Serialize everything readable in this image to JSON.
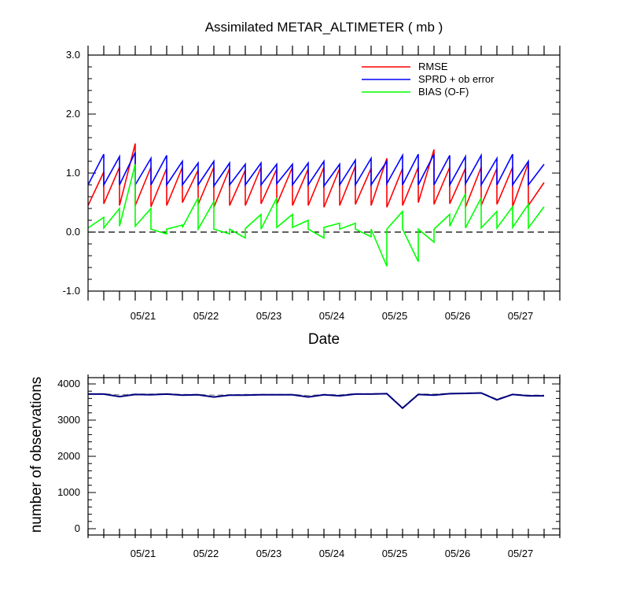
{
  "chart_data": [
    {
      "type": "line",
      "title": "Assimilated METAR_ALTIMETER ( mb )",
      "xlabel": "Date",
      "ylabel": "",
      "ylim": [
        -1.0,
        3.0
      ],
      "yticks": [
        -1.0,
        0.0,
        1.0,
        2.0,
        3.0
      ],
      "ytick_labels": [
        "-1.0",
        "0.0",
        "1.0",
        "2.0",
        "3.0"
      ],
      "xlim": [
        0,
        30
      ],
      "xticks": [
        {
          "x": 3.5,
          "label": "05/21"
        },
        {
          "x": 7.5,
          "label": "05/22"
        },
        {
          "x": 11.5,
          "label": "05/23"
        },
        {
          "x": 15.5,
          "label": "05/24"
        },
        {
          "x": 19.5,
          "label": "05/25"
        },
        {
          "x": 23.5,
          "label": "05/26"
        },
        {
          "x": 27.5,
          "label": "05/27"
        }
      ],
      "reference_line": {
        "y": 0.0,
        "style": "dashed"
      },
      "legend_position": "top-right",
      "series": [
        {
          "name": "RMSE",
          "color": "#ff0000",
          "values": [
            [
              0.45,
              1.02
            ],
            [
              0.48,
              1.1
            ],
            [
              0.45,
              1.5
            ],
            [
              0.45,
              1.1
            ],
            [
              0.43,
              1.08
            ],
            [
              0.45,
              1.1
            ],
            [
              0.5,
              1.05
            ],
            [
              0.47,
              1.1
            ],
            [
              0.42,
              1.08
            ],
            [
              0.45,
              1.05
            ],
            [
              0.45,
              1.1
            ],
            [
              0.48,
              1.07
            ],
            [
              0.47,
              1.1
            ],
            [
              0.45,
              1.07
            ],
            [
              0.45,
              1.1
            ],
            [
              0.42,
              1.08
            ],
            [
              0.45,
              1.12
            ],
            [
              0.47,
              1.08
            ],
            [
              0.45,
              1.25
            ],
            [
              0.42,
              1.08
            ],
            [
              0.45,
              1.1
            ],
            [
              0.5,
              1.4
            ],
            [
              0.47,
              1.1
            ],
            [
              0.48,
              1.08
            ],
            [
              0.42,
              1.1
            ],
            [
              0.45,
              1.08
            ],
            [
              0.47,
              1.1
            ],
            [
              0.43,
              1.17
            ],
            [
              0.45,
              0.84
            ]
          ]
        },
        {
          "name": "SPRD + ob error",
          "color": "#0000ff",
          "values": [
            [
              0.8,
              1.32
            ],
            [
              0.8,
              1.28
            ],
            [
              0.8,
              1.35
            ],
            [
              0.8,
              1.25
            ],
            [
              0.8,
              1.3
            ],
            [
              0.8,
              1.2
            ],
            [
              0.8,
              1.17
            ],
            [
              0.8,
              1.2
            ],
            [
              0.78,
              1.17
            ],
            [
              0.8,
              1.15
            ],
            [
              0.8,
              1.17
            ],
            [
              0.8,
              1.15
            ],
            [
              0.82,
              1.15
            ],
            [
              0.8,
              1.17
            ],
            [
              0.8,
              1.2
            ],
            [
              0.78,
              1.15
            ],
            [
              0.8,
              1.22
            ],
            [
              0.8,
              1.25
            ],
            [
              0.8,
              1.2
            ],
            [
              0.82,
              1.3
            ],
            [
              0.8,
              1.32
            ],
            [
              0.8,
              1.32
            ],
            [
              0.8,
              1.3
            ],
            [
              0.8,
              1.28
            ],
            [
              0.82,
              1.3
            ],
            [
              0.8,
              1.25
            ],
            [
              0.8,
              1.32
            ],
            [
              0.8,
              1.2
            ],
            [
              0.8,
              1.15
            ]
          ]
        },
        {
          "name": "BIAS (O-F)",
          "color": "#00ff00",
          "values": [
            [
              0.07,
              0.25
            ],
            [
              0.07,
              0.4
            ],
            [
              0.1,
              1.15
            ],
            [
              0.1,
              0.4
            ],
            [
              0.05,
              -0.03
            ],
            [
              0.05,
              0.12
            ],
            [
              0.08,
              0.58
            ],
            [
              0.05,
              0.52
            ],
            [
              0.05,
              -0.03
            ],
            [
              0.05,
              -0.1
            ],
            [
              0.06,
              0.3
            ],
            [
              0.05,
              0.58
            ],
            [
              0.08,
              0.3
            ],
            [
              0.08,
              0.2
            ],
            [
              0.05,
              -0.1
            ],
            [
              0.08,
              0.15
            ],
            [
              0.05,
              0.15
            ],
            [
              0.05,
              -0.08
            ],
            [
              0.05,
              -0.58
            ],
            [
              0.05,
              0.35
            ],
            [
              0.05,
              -0.5
            ],
            [
              0.05,
              -0.17
            ],
            [
              0.05,
              0.3
            ],
            [
              0.1,
              0.65
            ],
            [
              0.07,
              0.58
            ],
            [
              0.07,
              0.35
            ],
            [
              0.07,
              0.43
            ],
            [
              0.08,
              0.47
            ],
            [
              0.07,
              0.43
            ]
          ]
        }
      ]
    },
    {
      "type": "line",
      "title": "",
      "xlabel": "",
      "ylabel": "number of observations",
      "ylim": [
        0,
        4000
      ],
      "yticks": [
        0,
        1000,
        2000,
        3000,
        4000
      ],
      "ytick_labels": [
        "0",
        "1000",
        "2000",
        "3000",
        "4000"
      ],
      "xlim": [
        0,
        30
      ],
      "xticks": [
        {
          "x": 3.5,
          "label": "05/21"
        },
        {
          "x": 7.5,
          "label": "05/22"
        },
        {
          "x": 11.5,
          "label": "05/23"
        },
        {
          "x": 15.5,
          "label": "05/24"
        },
        {
          "x": 19.5,
          "label": "05/25"
        },
        {
          "x": 23.5,
          "label": "05/26"
        },
        {
          "x": 27.5,
          "label": "05/27"
        }
      ],
      "series": [
        {
          "style": "dashed",
          "color": "#888888",
          "x": [
            0,
            1,
            2,
            3,
            4,
            5,
            6,
            7,
            8,
            9,
            10,
            11,
            12,
            13,
            14,
            15,
            16,
            17,
            18,
            19,
            20,
            21,
            22,
            23,
            24,
            25,
            26,
            27,
            28,
            29
          ],
          "values": [
            3730,
            3730,
            3700,
            3720,
            3720,
            3730,
            3710,
            3710,
            3690,
            3700,
            3710,
            3710,
            3710,
            3710,
            3680,
            3710,
            3700,
            3730,
            3730,
            3740,
            3350,
            3720,
            3720,
            3740,
            3750,
            3760,
            3580,
            3720,
            3690,
            3690
          ]
        },
        {
          "style": "solid",
          "color": "#000080",
          "x": [
            0,
            1,
            2,
            3,
            4,
            5,
            6,
            7,
            8,
            9,
            10,
            11,
            12,
            13,
            14,
            15,
            16,
            17,
            18,
            19,
            20,
            21,
            22,
            23,
            24,
            25,
            26,
            27,
            28,
            29
          ],
          "values": [
            3720,
            3720,
            3650,
            3710,
            3700,
            3720,
            3690,
            3700,
            3640,
            3690,
            3690,
            3700,
            3700,
            3700,
            3640,
            3700,
            3670,
            3720,
            3720,
            3730,
            3330,
            3710,
            3690,
            3730,
            3740,
            3750,
            3560,
            3710,
            3670,
            3670
          ]
        }
      ]
    }
  ]
}
